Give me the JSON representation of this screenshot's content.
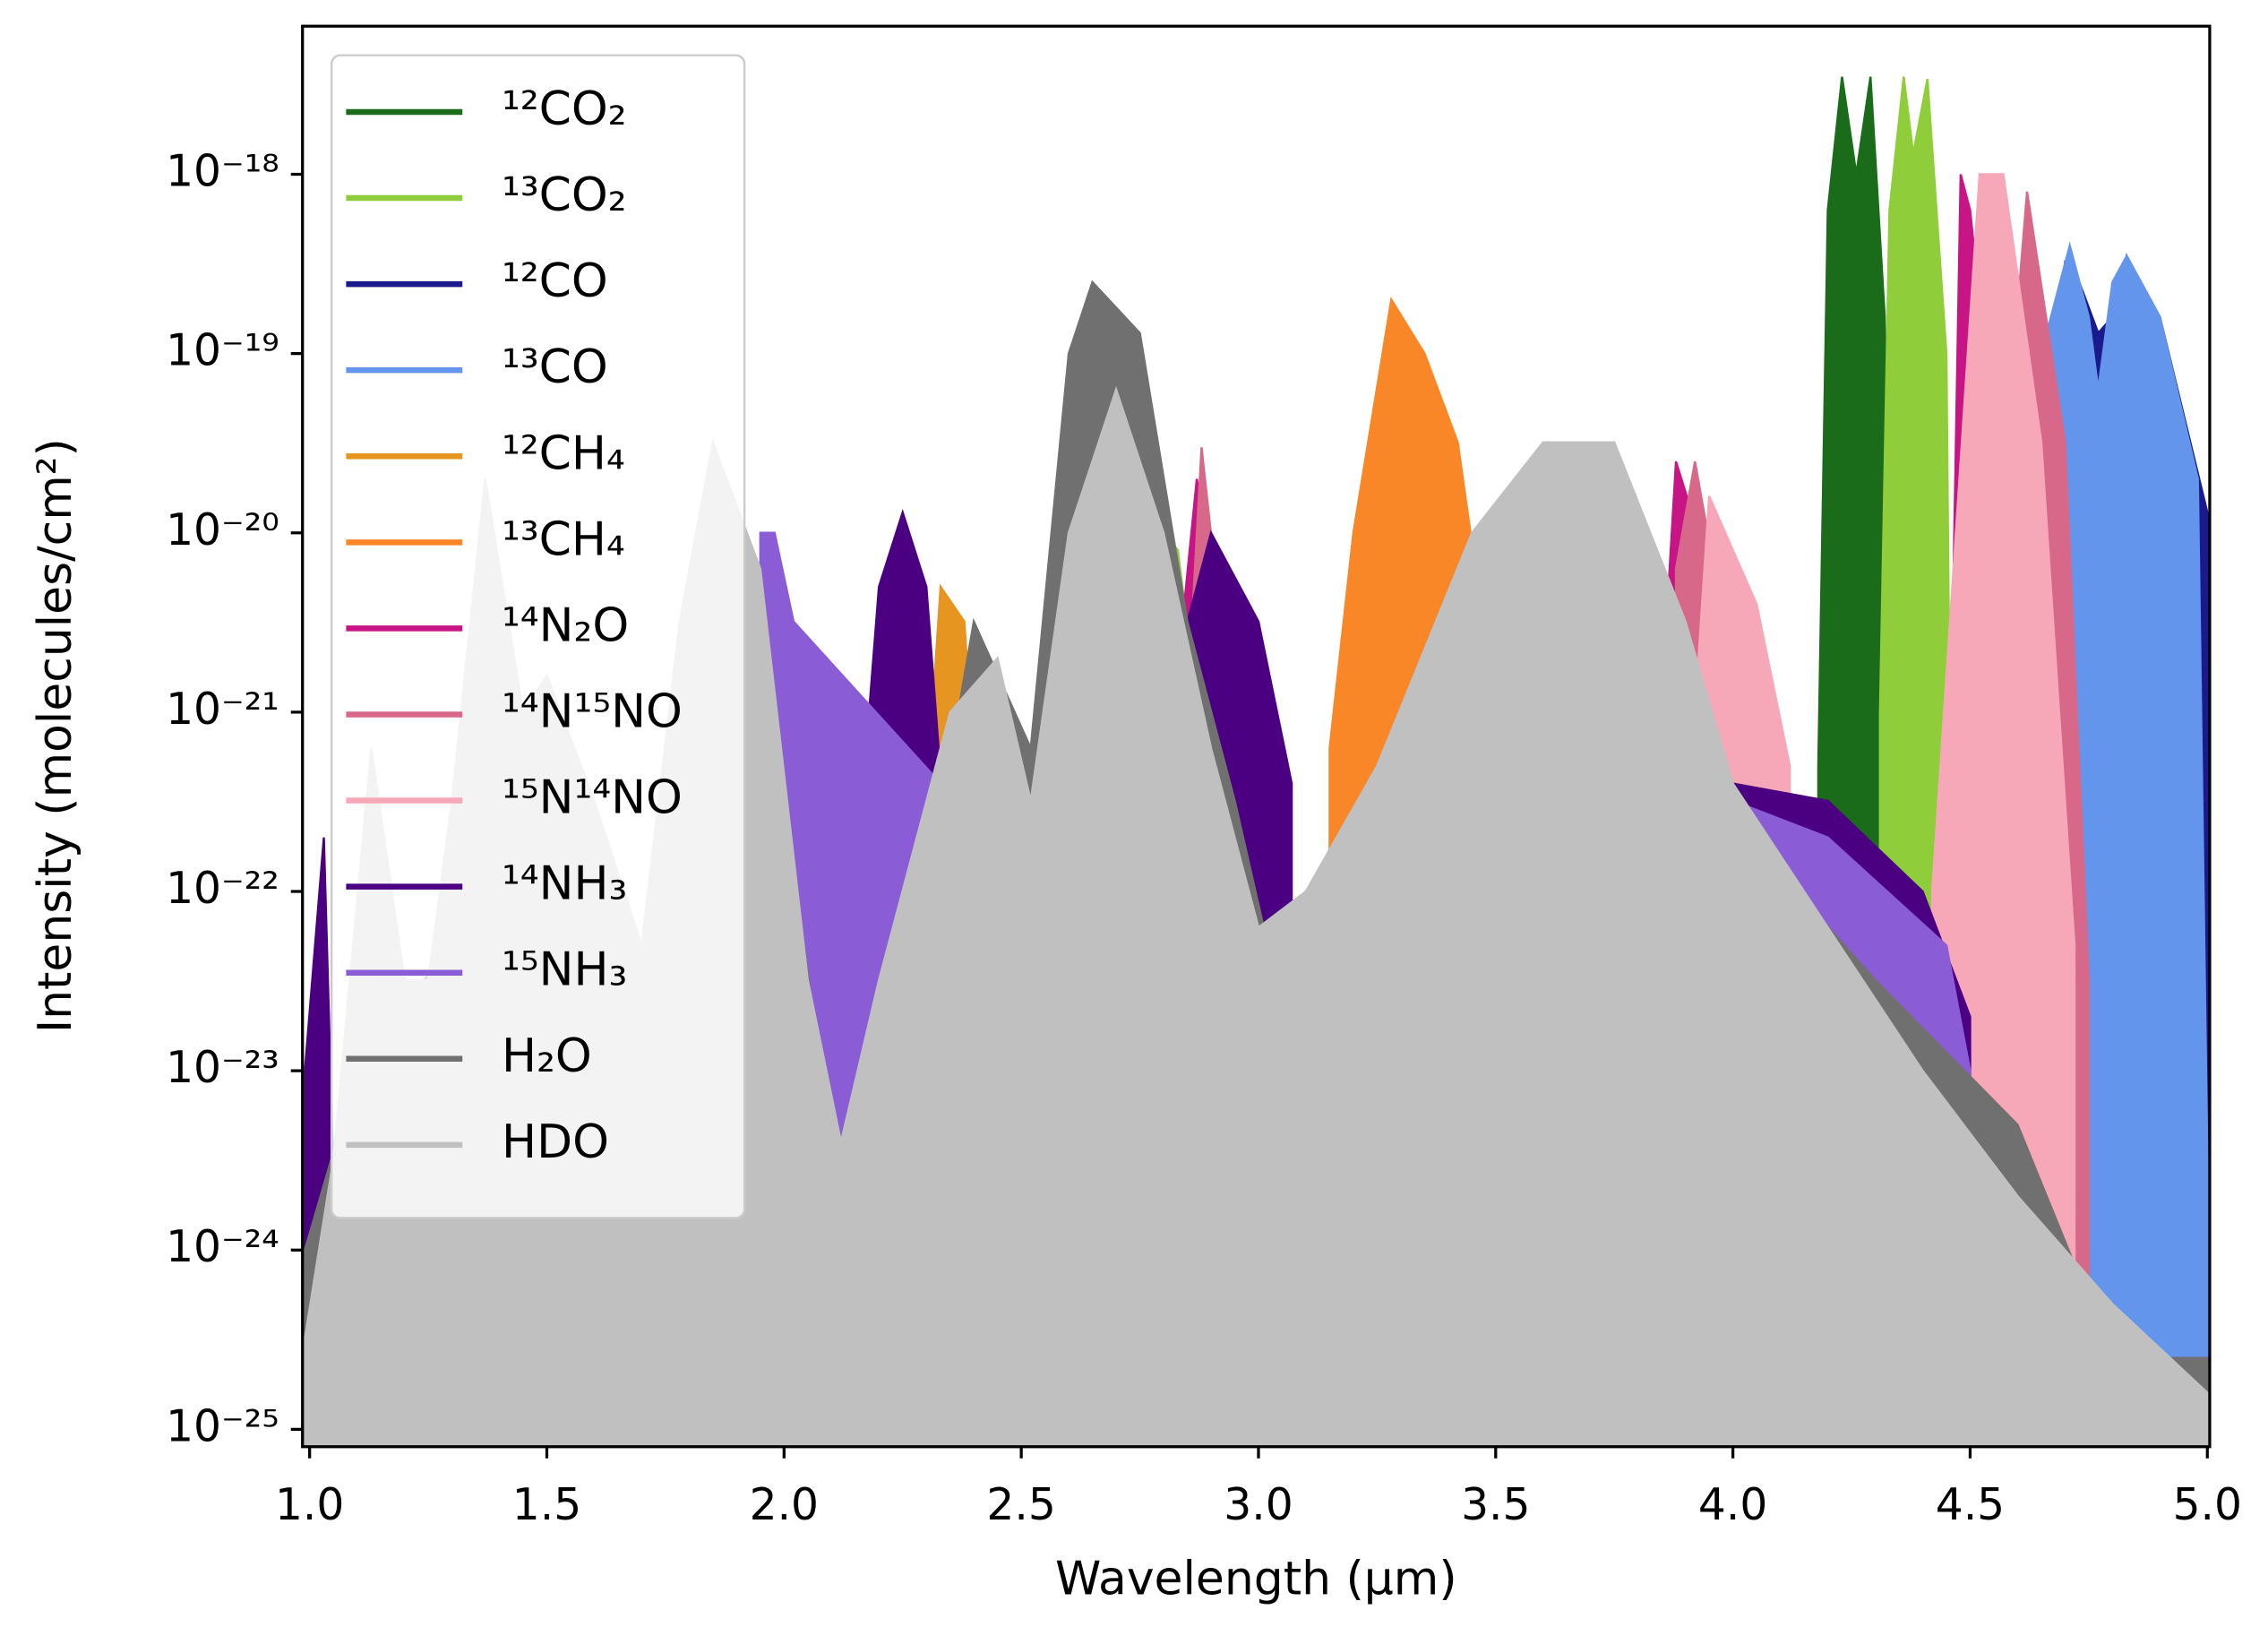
{
  "chart_data": {
    "type": "area",
    "xlabel": "Wavelength (μm)",
    "ylabel": "Intensity (molecules/cm²)",
    "xlim": [
      0.985,
      5.005
    ],
    "ylim": [
      8e-26,
      6.7e-18
    ],
    "yscale": "log",
    "legend": "upper left",
    "xticks": [
      {
        "value": 1,
        "label": "1.0"
      },
      1.5,
      {
        "value": 2,
        "label": "2.0"
      },
      2.5,
      {
        "value": 3,
        "label": "3.0"
      },
      3.5,
      {
        "value": 4,
        "label": "4.0"
      },
      4.5,
      {
        "value": 5,
        "label": "5.0"
      }
    ],
    "yticks": [
      {
        "value": 1e-25,
        "label": "10⁻²⁵"
      },
      {
        "value": 1e-24,
        "label": "10⁻²⁴"
      },
      {
        "value": 1e-23,
        "label": "10⁻²³"
      },
      {
        "value": 1e-22,
        "label": "10⁻²²"
      },
      {
        "value": 1e-21,
        "label": "10⁻²¹"
      },
      {
        "value": 1e-20,
        "label": "10⁻²⁰"
      },
      {
        "value": 1e-19,
        "label": "10⁻¹⁹"
      },
      {
        "value": 1e-18,
        "label": "10⁻¹⁸"
      }
    ],
    "series": [
      {
        "name": "¹²CO₂",
        "color": "#1a6b1a",
        "x": [
          4.18,
          4.2,
          4.23,
          4.26,
          4.29,
          4.32,
          4.33
        ],
        "values": [
          5e-22,
          6.3e-19,
          3.5e-18,
          1e-18,
          3.5e-18,
          1.6e-19,
          3.2e-22
        ]
      },
      {
        "name": "¹³CO₂",
        "color": "#8fce3a",
        "x": [
          2.78,
          2.8,
          2.83,
          2.85,
          3.0,
          4.31,
          4.33,
          4.36,
          4.38,
          4.41,
          4.45,
          4.46
        ],
        "values": [
          5e-21,
          1e-20,
          8e-21,
          3e-21,
          null,
          1e-21,
          6.3e-19,
          3.5e-18,
          1.3e-18,
          3.4e-18,
          1e-19,
          1e-22
        ]
      },
      {
        "name": "¹²CO",
        "color": "#1a1a8c",
        "x": [
          4.55,
          4.7,
          4.73,
          4.77,
          4.8,
          4.83,
          4.9,
          5.0
        ],
        "values": [
          1e-22,
          3.2e-19,
          2.5e-19,
          1.3e-19,
          1.6e-19,
          3.5e-19,
          1.6e-19,
          1.3e-20
        ]
      },
      {
        "name": "¹³CO",
        "color": "#6495ed",
        "x": [
          4.55,
          4.65,
          4.71,
          4.75,
          4.77,
          4.8,
          4.83,
          4.9,
          4.98,
          5.0
        ],
        "values": [
          3.2e-22,
          1e-19,
          4e-19,
          1.6e-19,
          6.3e-20,
          2.5e-19,
          3.5e-19,
          1.6e-19,
          2e-20,
          3.2e-24
        ]
      },
      {
        "name": "¹²CH₄",
        "color": "#e69520",
        "x": [
          2.3,
          2.33,
          2.38,
          2.4,
          3.0,
          3.17,
          3.3,
          3.48
        ],
        "values": [
          3.2e-22,
          5e-21,
          3.2e-21,
          5e-22,
          null,
          3.2e-22,
          1e-19,
          3.2e-22
        ]
      },
      {
        "name": "¹³CH₄",
        "color": "#f98728",
        "x": [
          3.15,
          3.2,
          3.28,
          3.35,
          3.42,
          3.5
        ],
        "values": [
          6.3e-22,
          1e-20,
          2e-19,
          1e-19,
          3.2e-20,
          1e-21
        ]
      },
      {
        "name": "¹⁴N₂O",
        "color": "#c71585",
        "x": [
          2.1,
          2.12,
          2.14,
          2.5,
          2.84,
          2.87,
          2.92,
          3.5,
          3.86,
          3.88,
          3.95,
          4.02,
          4.2,
          4.45,
          4.48,
          4.5,
          4.55,
          4.6
        ],
        "values": [
          1e-22,
          6.3e-22,
          1e-23,
          null,
          3.2e-21,
          2e-20,
          3.2e-21,
          null,
          3.2e-21,
          2.5e-20,
          6.3e-21,
          1e-22,
          null,
          3.2e-23,
          1e-18,
          6.3e-19,
          3.2e-20,
          3.2e-23
        ]
      },
      {
        "name": "¹⁴N¹⁵NO",
        "color": "#d8688a",
        "x": [
          2.86,
          2.88,
          2.92,
          3.5,
          3.88,
          3.92,
          3.98,
          4.0,
          4.5,
          4.62,
          4.7,
          4.75
        ],
        "values": [
          3.2e-21,
          3e-20,
          3.2e-21,
          null,
          6.3e-21,
          2.5e-20,
          3.2e-21,
          null,
          1e-22,
          8e-19,
          3.2e-20,
          3.2e-23
        ]
      },
      {
        "name": "¹⁵N¹⁴NO",
        "color": "#f7a8b8",
        "x": [
          3.92,
          3.95,
          4.05,
          4.12,
          4.3,
          4.42,
          4.52,
          4.57,
          4.65,
          4.72
        ],
        "values": [
          1e-21,
          1.6e-20,
          4e-21,
          5e-22,
          null,
          1e-22,
          1e-18,
          1e-18,
          3.2e-20,
          5e-23
        ]
      },
      {
        "name": "¹⁴NH₃",
        "color": "#4b0082",
        "x": [
          0.99,
          1.03,
          1.06,
          1.5,
          2.12,
          2.2,
          2.25,
          2.3,
          2.34,
          2.6,
          2.8,
          2.9,
          3.0,
          3.07,
          3.5,
          4.0,
          4.2,
          4.4,
          4.5
        ],
        "values": [
          1e-23,
          2e-22,
          3.2e-25,
          null,
          1e-23,
          5e-21,
          1.3e-20,
          5e-21,
          2e-22,
          null,
          1e-21,
          1e-20,
          3.2e-21,
          4e-22,
          null,
          4e-22,
          3.2e-22,
          1e-22,
          2e-23
        ]
      },
      {
        "name": "¹⁵NH₃",
        "color": "#8a5cd6",
        "x": [
          1.95,
          1.98,
          2.02,
          2.33,
          2.5,
          4.0,
          4.2,
          4.45,
          4.5
        ],
        "values": [
          1e-20,
          1e-20,
          3.2e-21,
          4e-22,
          null,
          3.2e-22,
          2e-22,
          5e-23,
          1e-23
        ]
      },
      {
        "name": "H₂O",
        "color": "#707070",
        "x": [
          0.99,
          1.1,
          1.2,
          1.22,
          1.24,
          1.3,
          1.37,
          1.5,
          1.6,
          1.68,
          1.75,
          1.85,
          2.0,
          2.13,
          2.25,
          2.4,
          2.52,
          2.6,
          2.65,
          2.75,
          2.85,
          2.95,
          3.08,
          3.2,
          3.4,
          3.6,
          4.0,
          4.3,
          4.6,
          4.8,
          5.0
        ],
        "values": [
          1e-24,
          1e-23,
          3.2e-23,
          1.6e-25,
          3.2e-23,
          5e-23,
          3.2e-21,
          3.2e-22,
          3.2e-23,
          2.5e-25,
          3.2e-23,
          3.2e-21,
          3.2e-22,
          1e-24,
          1.6e-23,
          3.2e-21,
          6.3e-22,
          1e-19,
          2.5e-19,
          1.3e-19,
          3.2e-21,
          3.2e-22,
          1e-23,
          2.5e-22,
          3.2e-22,
          3.2e-22,
          2.5e-22,
          3.2e-23,
          5e-24,
          2.5e-25,
          2.5e-25
        ]
      },
      {
        "name": "HDO",
        "color": "#c0c0c0",
        "x": [
          0.99,
          1.05,
          1.13,
          1.2,
          1.25,
          1.3,
          1.37,
          1.45,
          1.5,
          1.6,
          1.7,
          1.78,
          1.85,
          1.95,
          2.05,
          2.12,
          2.2,
          2.35,
          2.45,
          2.52,
          2.6,
          2.7,
          2.8,
          2.9,
          3.0,
          3.1,
          3.25,
          3.45,
          3.6,
          3.75,
          3.9,
          4.0,
          4.2,
          4.4,
          4.6,
          4.8,
          5.0
        ],
        "values": [
          3.2e-25,
          3.2e-24,
          6.3e-22,
          3.2e-23,
          3.2e-23,
          3.2e-22,
          2e-20,
          1e-21,
          1.6e-21,
          3.2e-22,
          5e-23,
          3.2e-21,
          3.2e-20,
          6.3e-21,
          3.2e-23,
          4e-24,
          3.2e-23,
          1e-21,
          2e-21,
          3.2e-22,
          1e-20,
          6.3e-20,
          1e-20,
          6.3e-22,
          6.3e-23,
          1e-22,
          5e-22,
          1e-20,
          3.2e-20,
          3.2e-20,
          3.2e-21,
          4e-22,
          6.3e-23,
          1e-23,
          2e-24,
          5e-25,
          1.6e-25
        ]
      }
    ]
  }
}
